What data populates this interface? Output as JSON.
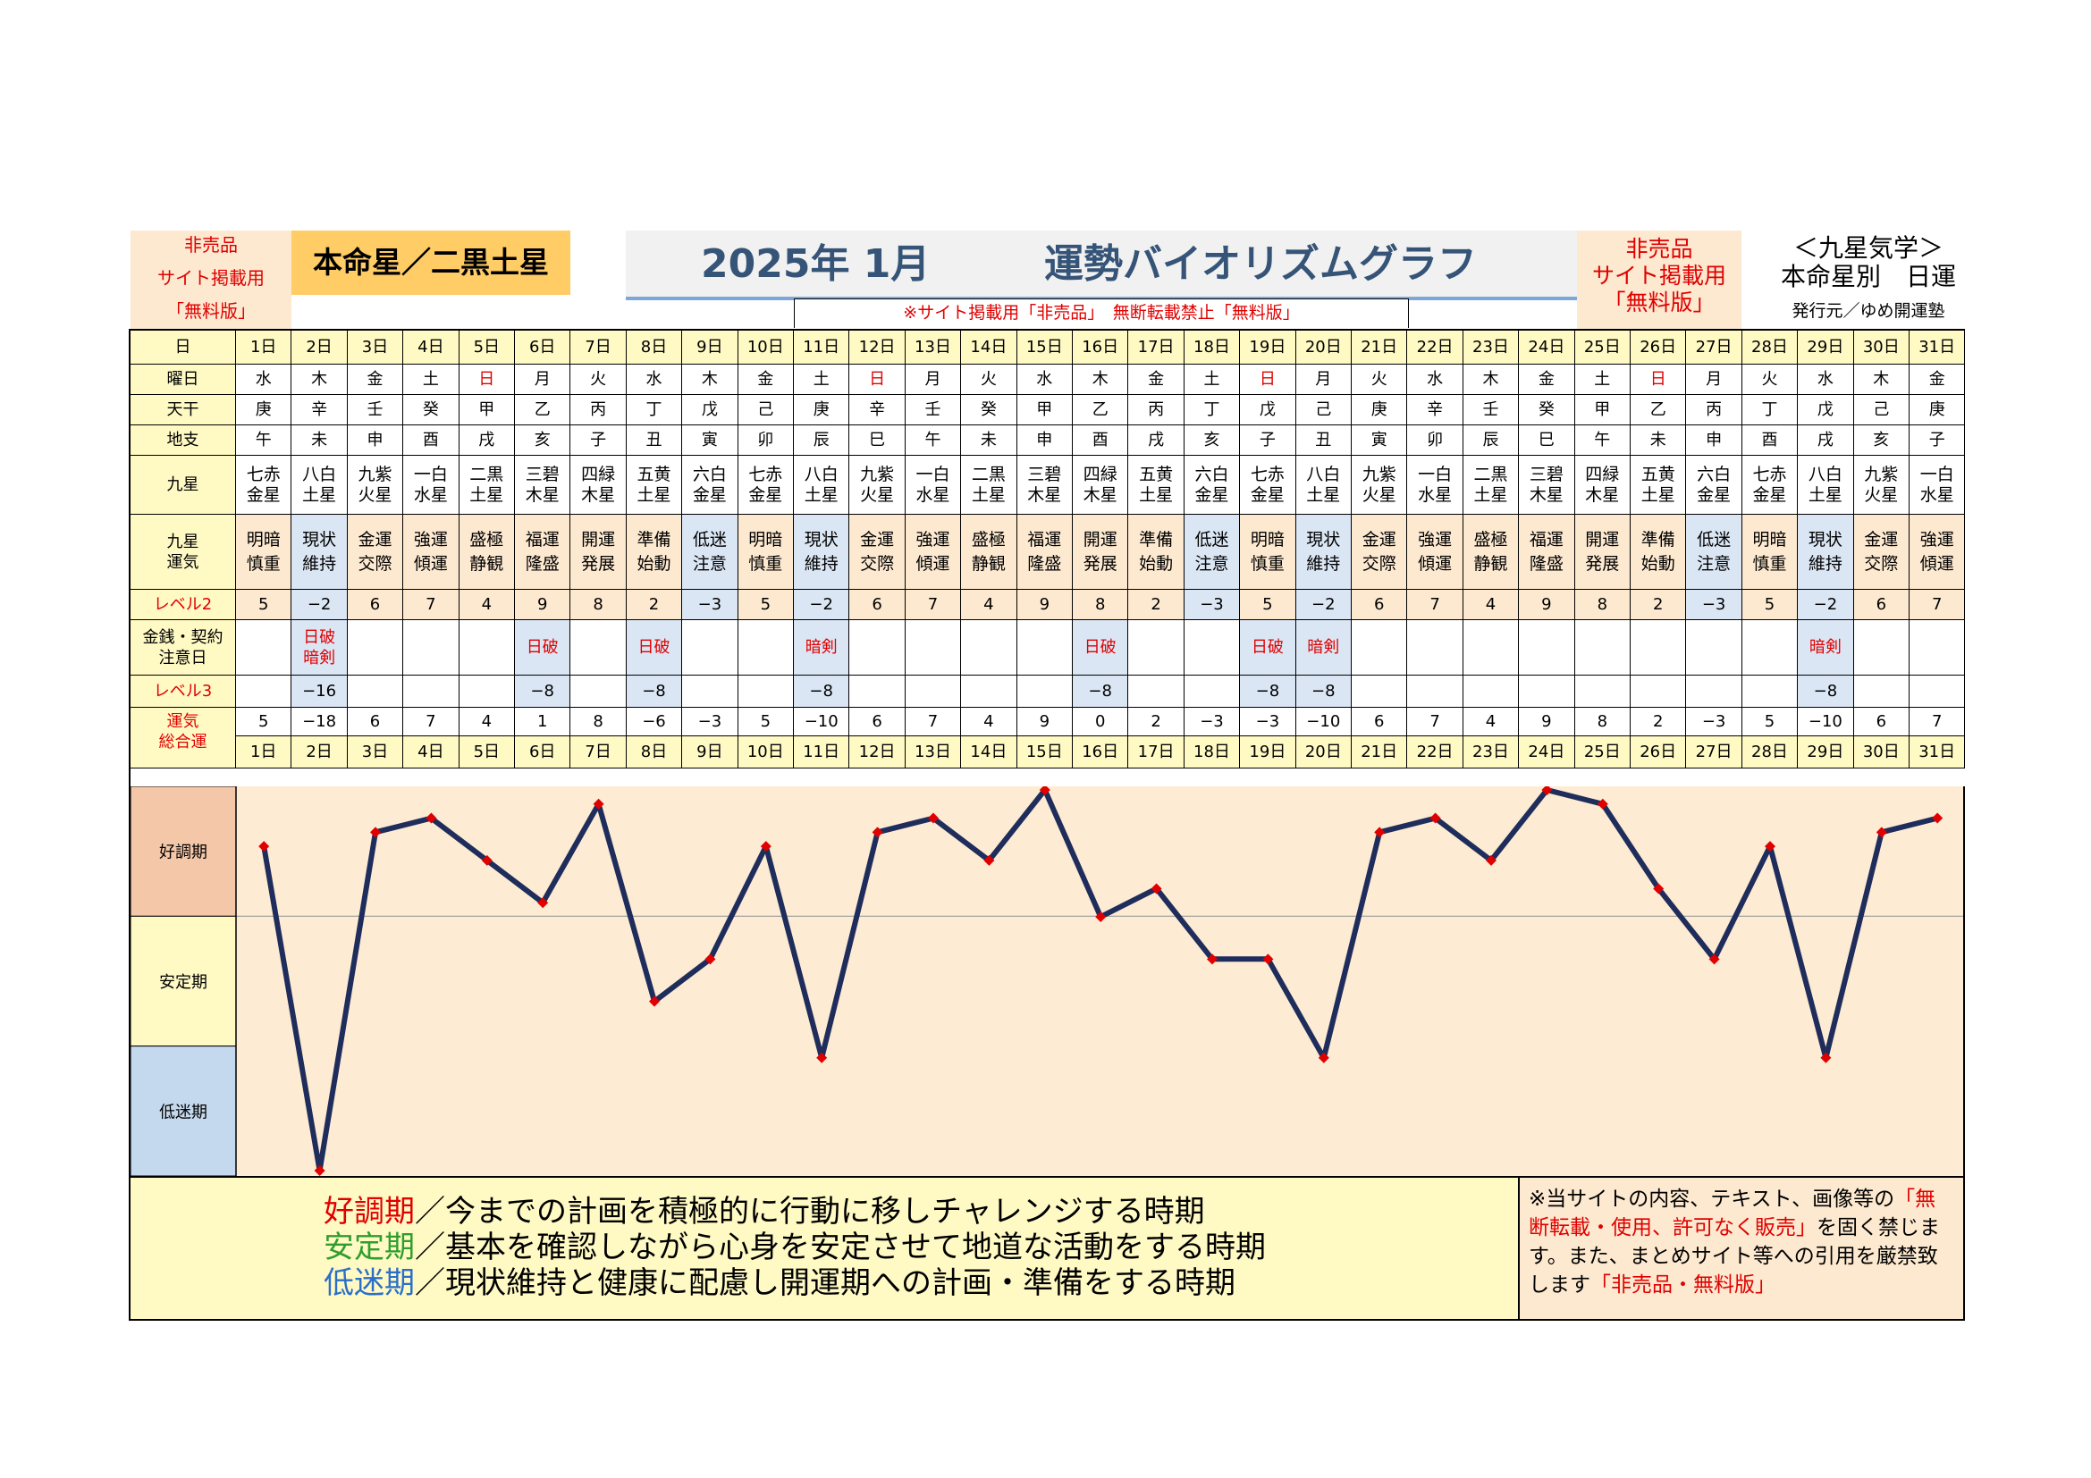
{
  "header": {
    "left_sale": [
      "非売品",
      "サイト掲載用",
      "「無料版」"
    ],
    "honmei": "本命星／二黒土星",
    "title_year": "2025年 1月",
    "title_main": "運勢バイオリズムグラフ",
    "right_sale": [
      "非売品",
      "サイト掲載用",
      "「無料版」"
    ],
    "kyusei": [
      "＜九星気学＞",
      "本命星別　日運"
    ],
    "publisher": "発行元／ゆめ開運塾",
    "notice": "※サイト掲載用「非売品」　無断転載禁止「無料版」"
  },
  "row_labels": {
    "day": "日",
    "weekday": "曜日",
    "tenkan": "天干",
    "chishi": "地支",
    "kyusei": "九星",
    "kyusei_unki": "九星\n運気",
    "level2": "レベル2",
    "kinsen": "金銭・契約\n注意日",
    "level3": "レベル3",
    "total": "運気\n総合運"
  },
  "days": [
    "1日",
    "2日",
    "3日",
    "4日",
    "5日",
    "6日",
    "7日",
    "8日",
    "9日",
    "10日",
    "11日",
    "12日",
    "13日",
    "14日",
    "15日",
    "16日",
    "17日",
    "18日",
    "19日",
    "20日",
    "21日",
    "22日",
    "23日",
    "24日",
    "25日",
    "26日",
    "27日",
    "28日",
    "29日",
    "30日",
    "31日"
  ],
  "weekdays": [
    "水",
    "木",
    "金",
    "土",
    "日",
    "月",
    "火",
    "水",
    "木",
    "金",
    "土",
    "日",
    "月",
    "火",
    "水",
    "木",
    "金",
    "土",
    "日",
    "月",
    "火",
    "水",
    "木",
    "金",
    "土",
    "日",
    "月",
    "火",
    "水",
    "木",
    "金"
  ],
  "tenkan": [
    "庚",
    "辛",
    "壬",
    "癸",
    "甲",
    "乙",
    "丙",
    "丁",
    "戊",
    "己",
    "庚",
    "辛",
    "壬",
    "癸",
    "甲",
    "乙",
    "丙",
    "丁",
    "戊",
    "己",
    "庚",
    "辛",
    "壬",
    "癸",
    "甲",
    "乙",
    "丙",
    "丁",
    "戊",
    "己",
    "庚"
  ],
  "chishi": [
    "午",
    "未",
    "申",
    "酉",
    "戌",
    "亥",
    "子",
    "丑",
    "寅",
    "卯",
    "辰",
    "巳",
    "午",
    "未",
    "申",
    "酉",
    "戌",
    "亥",
    "子",
    "丑",
    "寅",
    "卯",
    "辰",
    "巳",
    "午",
    "未",
    "申",
    "酉",
    "戌",
    "亥",
    "子"
  ],
  "kyusei": [
    "七赤\n金星",
    "八白\n土星",
    "九紫\n火星",
    "一白\n水星",
    "二黒\n土星",
    "三碧\n木星",
    "四緑\n木星",
    "五黄\n土星",
    "六白\n金星",
    "七赤\n金星",
    "八白\n土星",
    "九紫\n火星",
    "一白\n水星",
    "二黒\n土星",
    "三碧\n木星",
    "四緑\n木星",
    "五黄\n土星",
    "六白\n金星",
    "七赤\n金星",
    "八白\n土星",
    "九紫\n火星",
    "一白\n水星",
    "二黒\n土星",
    "三碧\n木星",
    "四緑\n木星",
    "五黄\n土星",
    "六白\n金星",
    "七赤\n金星",
    "八白\n土星",
    "九紫\n火星",
    "一白\n水星"
  ],
  "unki": [
    "明暗\n慎重",
    "現状\n維持",
    "金運\n交際",
    "強運\n傾運",
    "盛極\n静観",
    "福運\n隆盛",
    "開運\n発展",
    "準備\n始動",
    "低迷\n注意",
    "明暗\n慎重",
    "現状\n維持",
    "金運\n交際",
    "強運\n傾運",
    "盛極\n静観",
    "福運\n隆盛",
    "開運\n発展",
    "準備\n始動",
    "低迷\n注意",
    "明暗\n慎重",
    "現状\n維持",
    "金運\n交際",
    "強運\n傾運",
    "盛極\n静観",
    "福運\n隆盛",
    "開運\n発展",
    "準備\n始動",
    "低迷\n注意",
    "明暗\n慎重",
    "現状\n維持",
    "金運\n交際",
    "強運\n傾運"
  ],
  "level2": [
    "5",
    "−2",
    "6",
    "7",
    "4",
    "9",
    "8",
    "2",
    "−3",
    "5",
    "−2",
    "6",
    "7",
    "4",
    "9",
    "8",
    "2",
    "−3",
    "5",
    "−2",
    "6",
    "7",
    "4",
    "9",
    "8",
    "2",
    "−3",
    "5",
    "−2",
    "6",
    "7"
  ],
  "kinsen": [
    "",
    "日破\n暗剣",
    "",
    "",
    "",
    "日破",
    "",
    "日破",
    "",
    "",
    "暗剣",
    "",
    "",
    "",
    "",
    "日破",
    "",
    "",
    "日破",
    "暗剣",
    "",
    "",
    "",
    "",
    "",
    "",
    "",
    "",
    "暗剣",
    "",
    ""
  ],
  "level3": [
    "",
    "−16",
    "",
    "",
    "",
    "−8",
    "",
    "−8",
    "",
    "",
    "−8",
    "",
    "",
    "",
    "",
    "−8",
    "",
    "",
    "−8",
    "−8",
    "",
    "",
    "",
    "",
    "",
    "",
    "",
    "",
    "−8",
    "",
    ""
  ],
  "total": [
    "5",
    "−18",
    "6",
    "7",
    "4",
    "1",
    "8",
    "−6",
    "−3",
    "5",
    "−10",
    "6",
    "7",
    "4",
    "9",
    "0",
    "2",
    "−3",
    "−3",
    "−10",
    "6",
    "7",
    "4",
    "9",
    "8",
    "2",
    "−3",
    "5",
    "−10",
    "6",
    "7"
  ],
  "colors": {
    "weekday_sunday": "#e00000",
    "line": "#1f2d5c",
    "marker": "#e00000",
    "good_band": "#f4c7a8",
    "stable_band": "#fff9c4",
    "low_band": "#c5d9ee",
    "good_text": "#e00000",
    "stable_text": "#2e9e2e",
    "low_text": "#2a6fc9"
  },
  "chart_data": {
    "type": "line",
    "x": [
      "1日",
      "2日",
      "3日",
      "4日",
      "5日",
      "6日",
      "7日",
      "8日",
      "9日",
      "10日",
      "11日",
      "12日",
      "13日",
      "14日",
      "15日",
      "16日",
      "17日",
      "18日",
      "19日",
      "20日",
      "21日",
      "22日",
      "23日",
      "24日",
      "25日",
      "26日",
      "27日",
      "28日",
      "29日",
      "30日",
      "31日"
    ],
    "series": [
      {
        "values": [
          5,
          -18,
          6,
          7,
          4,
          1,
          8,
          -6,
          -3,
          5,
          -10,
          6,
          7,
          4,
          9,
          0,
          2,
          -3,
          -3,
          -10,
          6,
          7,
          4,
          9,
          8,
          2,
          -3,
          5,
          -10,
          6,
          7
        ]
      }
    ],
    "ylim": [
      -18,
      9
    ],
    "bands": [
      "好調期",
      "安定期",
      "低迷期"
    ],
    "grid": false
  },
  "footer": {
    "lines": [
      {
        "term": "好調期",
        "desc": "／今までの計画を積極的に行動に移しチャレンジする時期"
      },
      {
        "term": "安定期",
        "desc": "／基本を確認しながら心身を安定させて地道な活動をする時期"
      },
      {
        "term": "低迷期",
        "desc": "／現状維持と健康に配慮し開運期への計画・準備をする時期"
      }
    ],
    "notice_1": "※当サイトの内容、テキスト、画像等の",
    "notice_red": "「無断転載・使用、許可なく販売」",
    "notice_2": "を固く禁じます。また、まとめサイト等への引用を厳禁致します",
    "notice_red2": "「非売品・無料版」"
  }
}
